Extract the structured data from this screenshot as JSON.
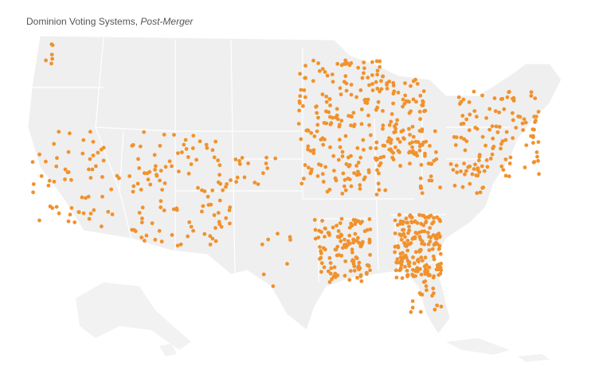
{
  "header": {
    "title": "Dominion Voting Systems, ",
    "subtitle": "Post-Merger"
  }
}
